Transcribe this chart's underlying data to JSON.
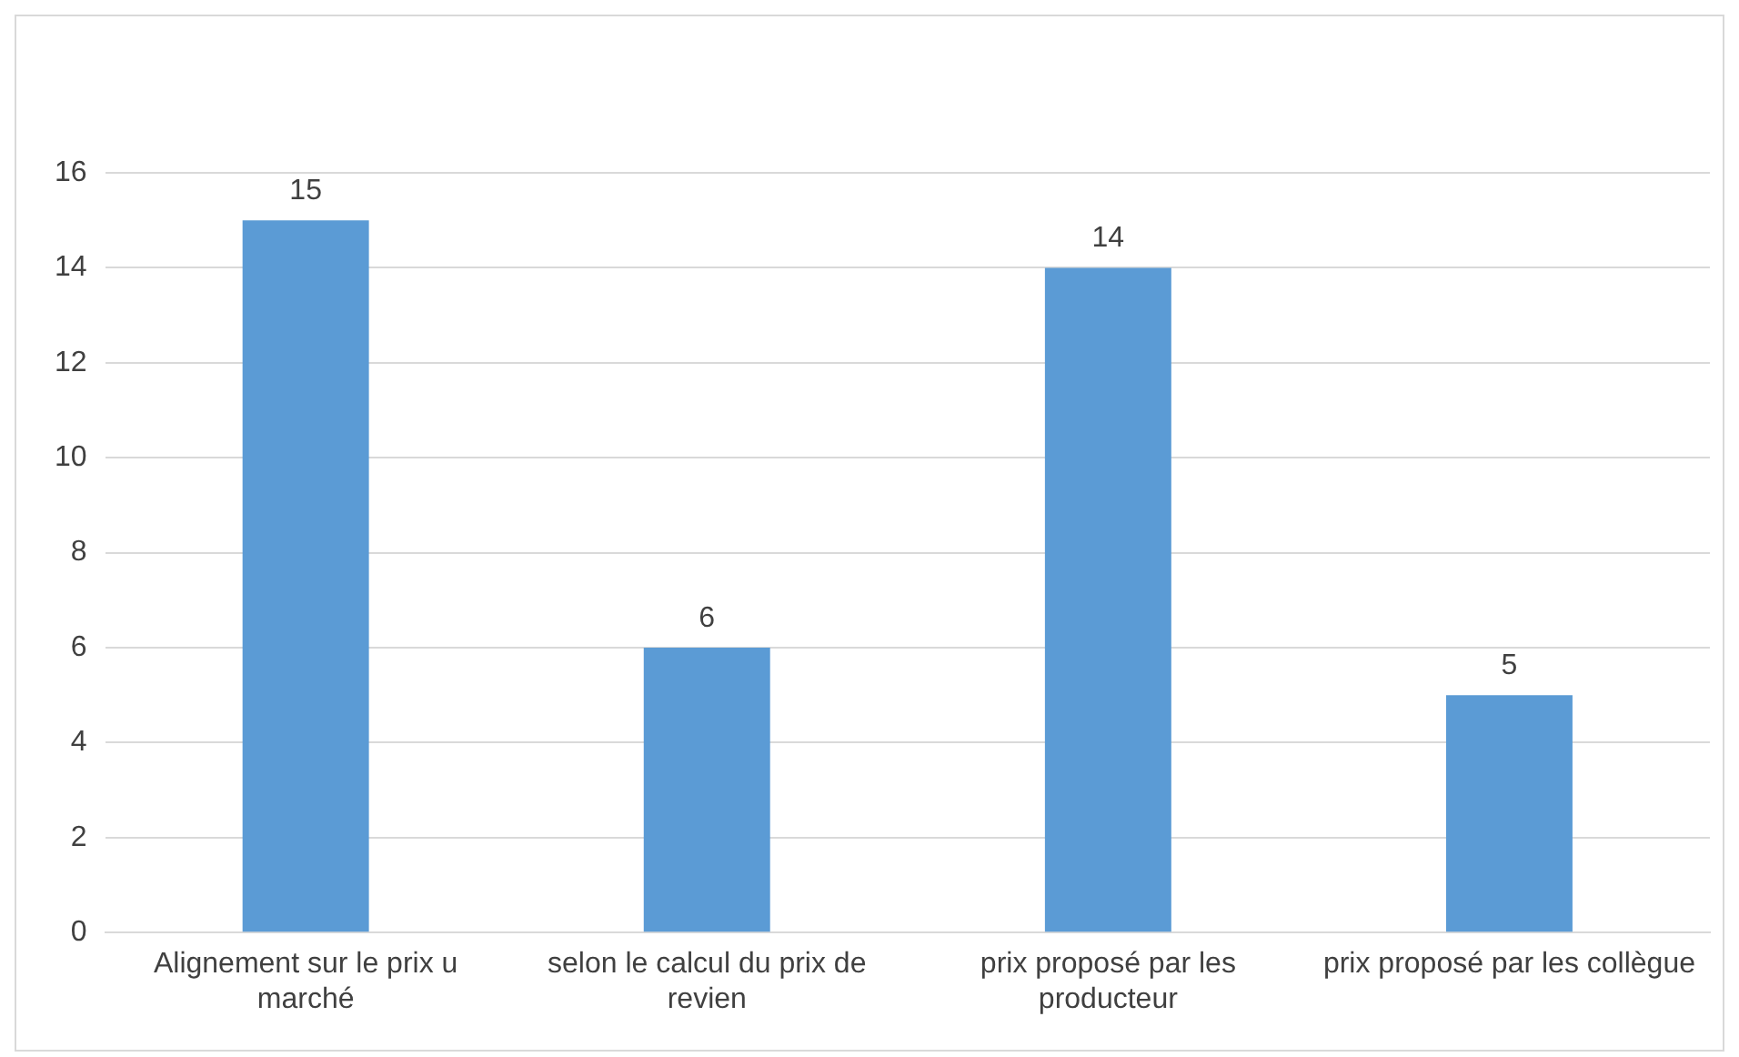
{
  "chart_data": {
    "type": "bar",
    "categories": [
      "Alignement sur le prix u marché",
      "selon le calcul du prix de revien",
      "prix proposé par les producteur",
      "prix proposé par les collègue"
    ],
    "values": [
      15,
      6,
      14,
      5
    ],
    "color": "#5b9bd5",
    "ylim": [
      0,
      16
    ],
    "yticks": [
      0,
      2,
      4,
      6,
      8,
      10,
      12,
      14,
      16
    ],
    "grid": "y",
    "data_labels": true
  }
}
